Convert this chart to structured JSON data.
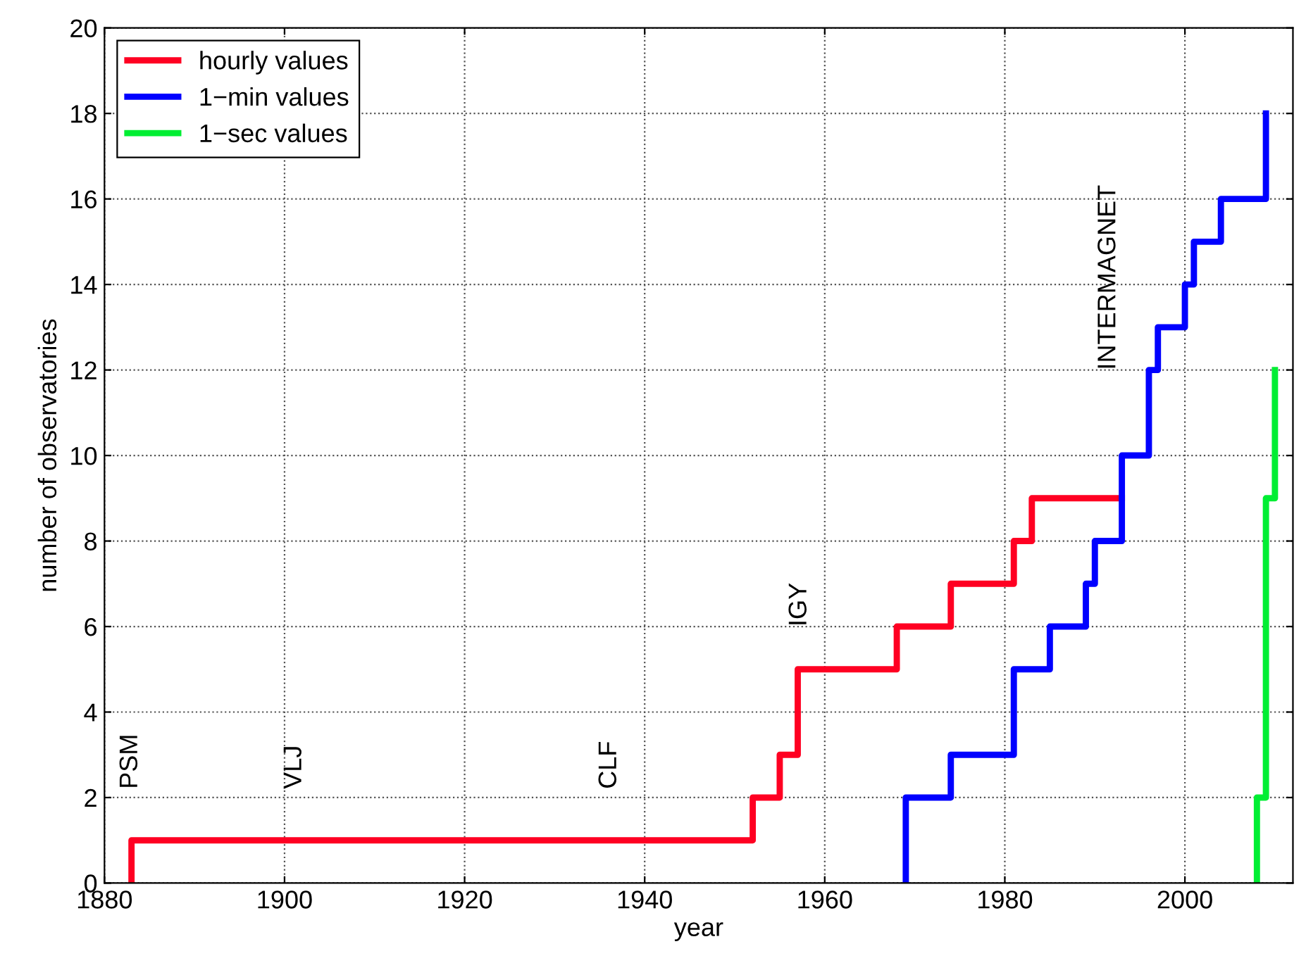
{
  "chart_data": {
    "type": "step",
    "xlabel": "year",
    "ylabel": "number of observatories",
    "xlim": [
      1880,
      2012
    ],
    "ylim": [
      0,
      20
    ],
    "xticks": [
      1880,
      1900,
      1920,
      1940,
      1960,
      1980,
      2000
    ],
    "yticks": [
      0,
      2,
      4,
      6,
      8,
      10,
      12,
      14,
      16,
      18,
      20
    ],
    "grid": true,
    "legend": "top left",
    "series": [
      {
        "name": "hourly values",
        "color": "#ff0022",
        "x": [
          1883,
          1883,
          1952,
          1955,
          1957,
          1968,
          1974,
          1981,
          1983,
          1993
        ],
        "values": [
          0,
          1,
          2,
          3,
          5,
          6,
          7,
          8,
          9,
          9
        ]
      },
      {
        "name": "1−min values",
        "color": "#0000ff",
        "x": [
          1969,
          1969,
          1974,
          1981,
          1985,
          1989,
          1990,
          1993,
          1996,
          1997,
          2000,
          2001,
          2004,
          2009
        ],
        "values": [
          0,
          2,
          3,
          5,
          6,
          7,
          8,
          10,
          12,
          13,
          14,
          15,
          16,
          18
        ]
      },
      {
        "name": "1−sec values",
        "color": "#00ee33",
        "x": [
          2008,
          2008,
          2009,
          2010
        ],
        "values": [
          0,
          2,
          9,
          12
        ]
      }
    ],
    "annotations": [
      "PSM",
      "VLJ",
      "CLF",
      "IGY",
      "INTERMAGNET"
    ]
  }
}
